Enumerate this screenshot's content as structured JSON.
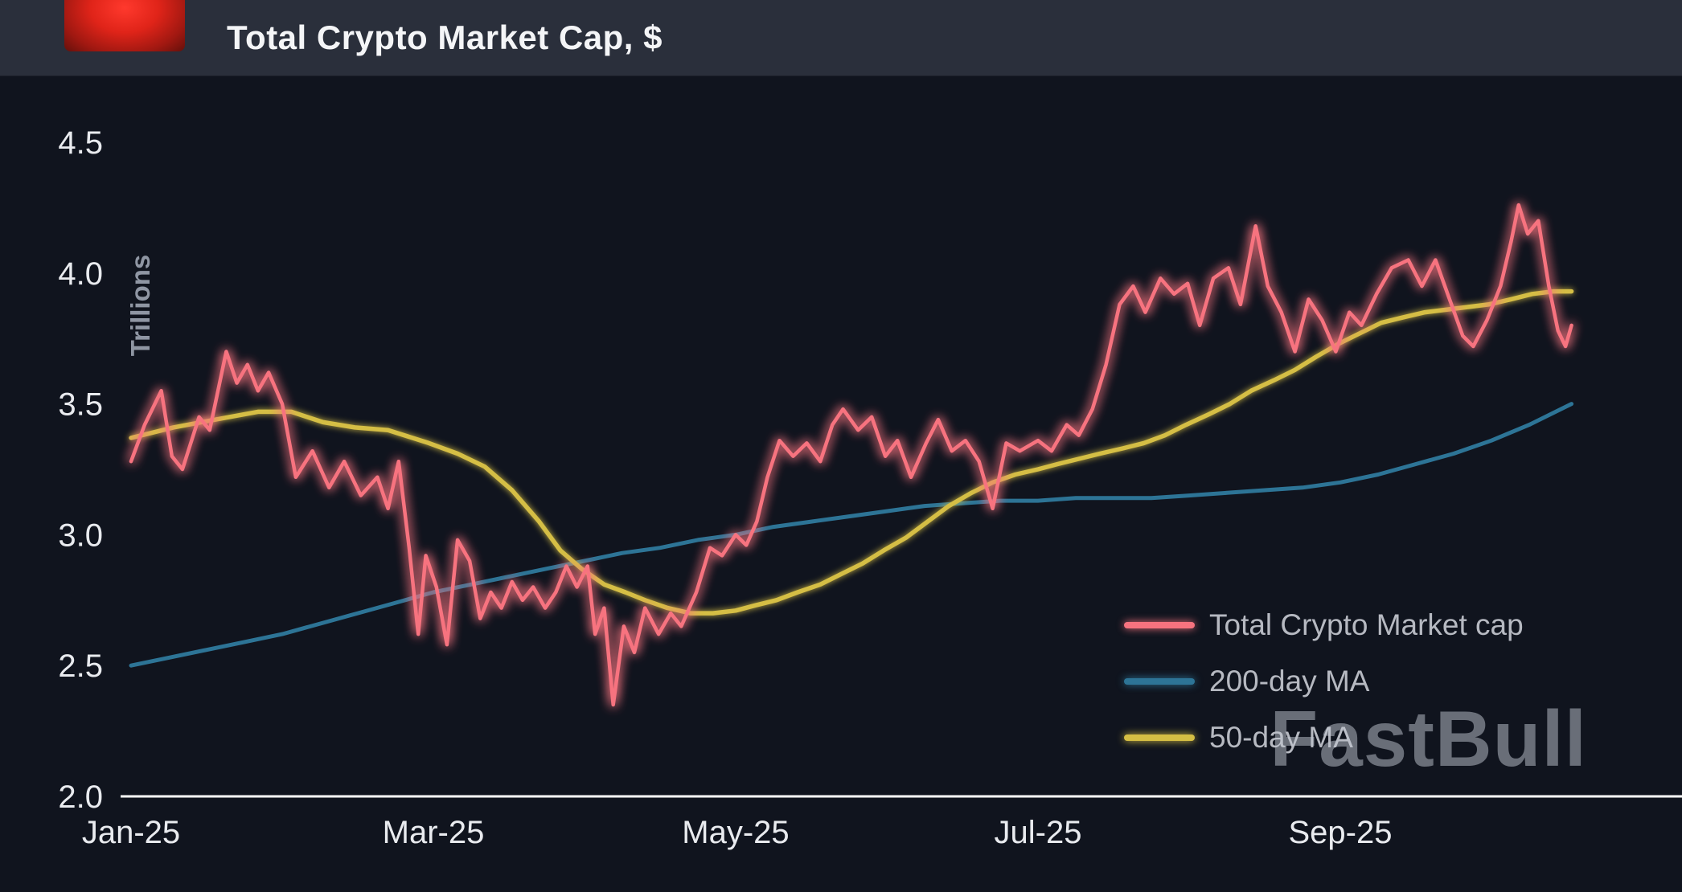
{
  "header": {
    "title": "Total Crypto Market Cap, $",
    "logo": "fastbull-red-logo"
  },
  "watermark": "FastBull",
  "colors": {
    "page_background": "#10141e",
    "header_background": "#2a2f3b",
    "logo_red": "#e02419",
    "axis_line": "#ffffff",
    "axis_tick_text": "#e9ebef",
    "y_axis_title_text": "#8f96a3",
    "legend_text": "#b6b9c1",
    "watermark_text": "#c1c7d1",
    "market_cap_line": "#f7737f",
    "ma200_line": "#2d7496",
    "ma50_line": "#d5be44"
  },
  "chart_data": {
    "type": "line",
    "title": "Total Crypto Market Cap, $",
    "xlabel": "",
    "ylabel": "Trillions",
    "x_unit": "months since Jan-25",
    "xlim": [
      0,
      9.6
    ],
    "ylim": [
      2.0,
      4.5
    ],
    "yticks": [
      2.0,
      2.5,
      3.0,
      3.5,
      4.0,
      4.5
    ],
    "ytick_labels": [
      "2.0",
      "2.5",
      "3.0",
      "3.5",
      "4.0",
      "4.5"
    ],
    "xticks": [
      0,
      2,
      4,
      6,
      8
    ],
    "xtick_labels": [
      "Jan-25",
      "Mar-25",
      "May-25",
      "Jul-25",
      "Sep-25"
    ],
    "grid": false,
    "legend_position": "bottom-right",
    "legend": [
      "Total Crypto Market cap",
      "200-day MA",
      "50-day MA"
    ],
    "series": [
      {
        "name": "Total Crypto Market cap",
        "color": "#f7737f",
        "x": [
          0.0,
          0.09,
          0.2,
          0.27,
          0.34,
          0.45,
          0.52,
          0.63,
          0.7,
          0.77,
          0.84,
          0.91,
          1.0,
          1.09,
          1.2,
          1.31,
          1.41,
          1.52,
          1.63,
          1.7,
          1.77,
          1.84,
          1.9,
          1.95,
          2.02,
          2.09,
          2.16,
          2.24,
          2.31,
          2.38,
          2.45,
          2.52,
          2.59,
          2.66,
          2.74,
          2.81,
          2.88,
          2.95,
          3.02,
          3.07,
          3.13,
          3.19,
          3.26,
          3.33,
          3.4,
          3.49,
          3.57,
          3.64,
          3.74,
          3.83,
          3.91,
          4.0,
          4.07,
          4.14,
          4.21,
          4.29,
          4.38,
          4.47,
          4.56,
          4.64,
          4.71,
          4.81,
          4.9,
          4.99,
          5.07,
          5.16,
          5.26,
          5.34,
          5.43,
          5.52,
          5.61,
          5.7,
          5.79,
          5.88,
          6.0,
          6.09,
          6.19,
          6.27,
          6.36,
          6.45,
          6.54,
          6.63,
          6.71,
          6.81,
          6.9,
          6.99,
          7.07,
          7.16,
          7.26,
          7.34,
          7.44,
          7.52,
          7.61,
          7.7,
          7.79,
          7.88,
          7.97,
          8.06,
          8.14,
          8.24,
          8.34,
          8.45,
          8.54,
          8.63,
          8.71,
          8.81,
          8.88,
          8.97,
          9.06,
          9.13,
          9.18,
          9.24,
          9.31,
          9.38,
          9.44,
          9.49,
          9.53
        ],
        "y": [
          3.28,
          3.42,
          3.55,
          3.3,
          3.25,
          3.45,
          3.4,
          3.7,
          3.58,
          3.65,
          3.55,
          3.62,
          3.5,
          3.22,
          3.32,
          3.18,
          3.28,
          3.15,
          3.22,
          3.1,
          3.28,
          2.95,
          2.62,
          2.92,
          2.8,
          2.58,
          2.98,
          2.9,
          2.68,
          2.78,
          2.72,
          2.82,
          2.75,
          2.8,
          2.72,
          2.78,
          2.88,
          2.8,
          2.88,
          2.62,
          2.72,
          2.35,
          2.65,
          2.55,
          2.72,
          2.62,
          2.7,
          2.65,
          2.78,
          2.95,
          2.92,
          3.0,
          2.96,
          3.05,
          3.22,
          3.36,
          3.3,
          3.35,
          3.28,
          3.42,
          3.48,
          3.4,
          3.45,
          3.3,
          3.36,
          3.22,
          3.35,
          3.44,
          3.32,
          3.36,
          3.28,
          3.1,
          3.35,
          3.32,
          3.36,
          3.32,
          3.42,
          3.38,
          3.48,
          3.65,
          3.88,
          3.95,
          3.85,
          3.98,
          3.92,
          3.96,
          3.8,
          3.98,
          4.02,
          3.88,
          4.18,
          3.95,
          3.85,
          3.7,
          3.9,
          3.82,
          3.7,
          3.85,
          3.8,
          3.92,
          4.02,
          4.05,
          3.95,
          4.05,
          3.92,
          3.76,
          3.72,
          3.82,
          3.95,
          4.12,
          4.26,
          4.15,
          4.2,
          3.95,
          3.78,
          3.72,
          3.8
        ]
      },
      {
        "name": "200-day MA",
        "color": "#2d7496",
        "x": [
          0,
          0.25,
          0.5,
          0.75,
          1.0,
          1.25,
          1.5,
          1.75,
          2.0,
          2.25,
          2.5,
          2.75,
          3.0,
          3.25,
          3.5,
          3.75,
          4.0,
          4.25,
          4.5,
          4.75,
          5.0,
          5.25,
          5.5,
          5.75,
          6.0,
          6.25,
          6.5,
          6.75,
          7.0,
          7.25,
          7.5,
          7.75,
          8.0,
          8.25,
          8.5,
          8.75,
          9.0,
          9.25,
          9.53
        ],
        "y": [
          2.5,
          2.53,
          2.56,
          2.59,
          2.62,
          2.66,
          2.7,
          2.74,
          2.78,
          2.81,
          2.84,
          2.87,
          2.9,
          2.93,
          2.95,
          2.98,
          3.0,
          3.03,
          3.05,
          3.07,
          3.09,
          3.11,
          3.12,
          3.13,
          3.13,
          3.14,
          3.14,
          3.14,
          3.15,
          3.16,
          3.17,
          3.18,
          3.2,
          3.23,
          3.27,
          3.31,
          3.36,
          3.42,
          3.5
        ]
      },
      {
        "name": "50-day MA",
        "color": "#d5be44",
        "x": [
          0,
          0.28,
          0.56,
          0.84,
          1.06,
          1.27,
          1.48,
          1.7,
          1.97,
          2.16,
          2.34,
          2.52,
          2.7,
          2.84,
          2.98,
          3.13,
          3.27,
          3.4,
          3.55,
          3.7,
          3.85,
          4.0,
          4.13,
          4.27,
          4.41,
          4.56,
          4.7,
          4.84,
          4.98,
          5.13,
          5.27,
          5.41,
          5.56,
          5.7,
          5.85,
          6.0,
          6.13,
          6.27,
          6.41,
          6.56,
          6.7,
          6.84,
          6.98,
          7.13,
          7.27,
          7.41,
          7.56,
          7.7,
          7.84,
          7.99,
          8.13,
          8.27,
          8.41,
          8.56,
          8.7,
          8.84,
          8.98,
          9.13,
          9.27,
          9.41,
          9.53
        ],
        "y": [
          3.37,
          3.41,
          3.44,
          3.47,
          3.47,
          3.43,
          3.41,
          3.4,
          3.35,
          3.31,
          3.26,
          3.17,
          3.05,
          2.94,
          2.87,
          2.81,
          2.78,
          2.75,
          2.72,
          2.7,
          2.7,
          2.71,
          2.73,
          2.75,
          2.78,
          2.81,
          2.85,
          2.89,
          2.94,
          2.99,
          3.05,
          3.11,
          3.16,
          3.2,
          3.23,
          3.25,
          3.27,
          3.29,
          3.31,
          3.33,
          3.35,
          3.38,
          3.42,
          3.46,
          3.5,
          3.55,
          3.59,
          3.63,
          3.68,
          3.73,
          3.77,
          3.81,
          3.83,
          3.85,
          3.86,
          3.87,
          3.88,
          3.9,
          3.92,
          3.93,
          3.93
        ]
      }
    ]
  }
}
